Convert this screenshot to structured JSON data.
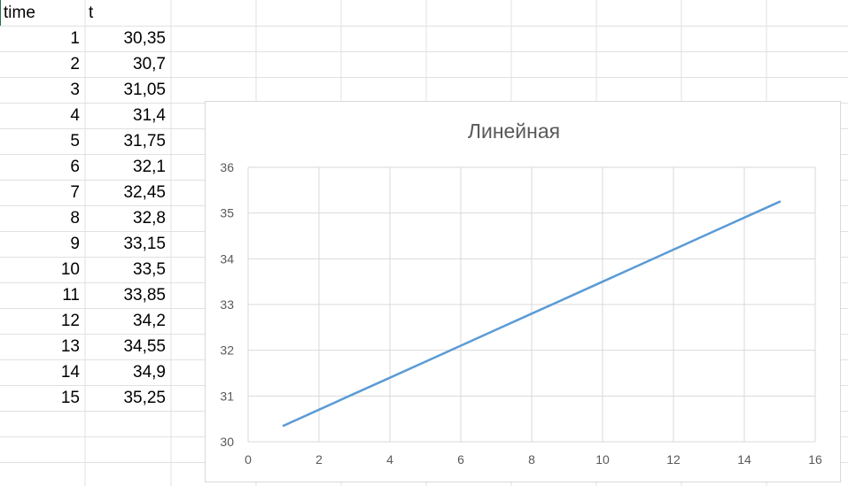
{
  "sheet": {
    "headers": [
      "time",
      "t"
    ],
    "rows": [
      [
        "1",
        "30,35"
      ],
      [
        "2",
        "30,7"
      ],
      [
        "3",
        "31,05"
      ],
      [
        "4",
        "31,4"
      ],
      [
        "5",
        "31,75"
      ],
      [
        "6",
        "32,1"
      ],
      [
        "7",
        "32,45"
      ],
      [
        "8",
        "32,8"
      ],
      [
        "9",
        "33,15"
      ],
      [
        "10",
        "33,5"
      ],
      [
        "11",
        "33,85"
      ],
      [
        "12",
        "34,2"
      ],
      [
        "13",
        "34,55"
      ],
      [
        "14",
        "34,9"
      ],
      [
        "15",
        "35,25"
      ]
    ]
  },
  "chart_data": {
    "type": "line",
    "title": "Линейная",
    "x": [
      1,
      2,
      3,
      4,
      5,
      6,
      7,
      8,
      9,
      10,
      11,
      12,
      13,
      14,
      15
    ],
    "series": [
      {
        "values": [
          30.35,
          30.7,
          31.05,
          31.4,
          31.75,
          32.1,
          32.45,
          32.8,
          33.15,
          33.5,
          33.85,
          34.2,
          34.55,
          34.9,
          35.25
        ]
      }
    ],
    "xlim": [
      0,
      16
    ],
    "ylim": [
      30,
      36
    ],
    "xticks": [
      "0",
      "2",
      "4",
      "6",
      "8",
      "10",
      "12",
      "14",
      "16"
    ],
    "yticks": [
      "30",
      "31",
      "32",
      "33",
      "34",
      "35",
      "36"
    ],
    "grid": true,
    "legend": "none",
    "line_color": "#5b9bd5",
    "grid_color": "#d9d9d9"
  }
}
